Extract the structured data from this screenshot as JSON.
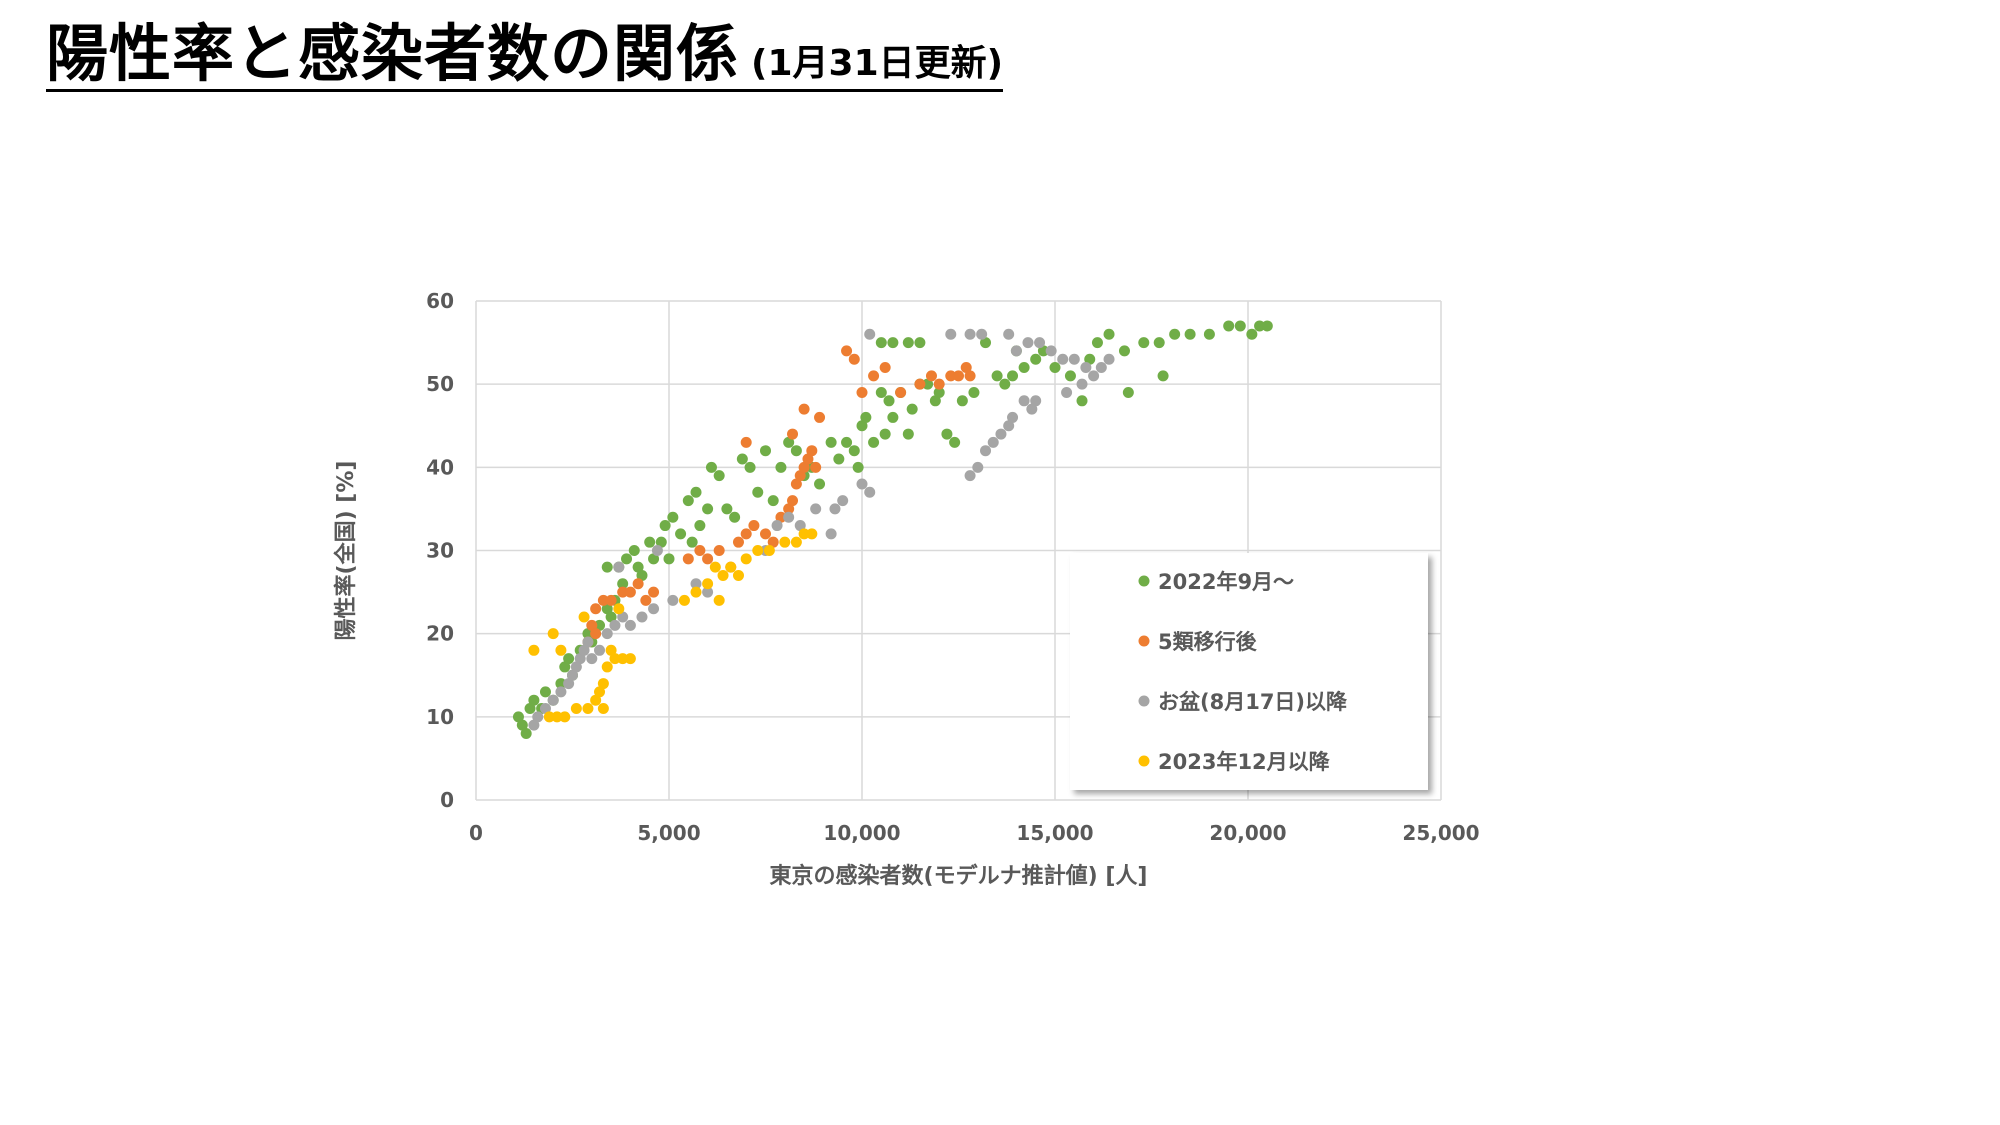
{
  "page": {
    "title": "陽性率と感染者数の関係",
    "subtitle": "(1月31日更新)"
  },
  "chart_data": {
    "type": "scatter",
    "xlabel": "東京の感染者数(モデルナ推計値) [人]",
    "ylabel": "陽性率(全国) [%]",
    "xlim": [
      0,
      25000
    ],
    "ylim": [
      0,
      60
    ],
    "x_ticks": [
      "0",
      "5,000",
      "10,000",
      "15,000",
      "20,000",
      "25,000"
    ],
    "y_ticks": [
      "0",
      "10",
      "20",
      "30",
      "40",
      "50",
      "60"
    ],
    "grid": true,
    "legend_position": "inside-bottom-right",
    "series": [
      {
        "name": "2022年9月～",
        "color": "#70ad47",
        "points": [
          [
            1200,
            9
          ],
          [
            1300,
            8
          ],
          [
            1100,
            10
          ],
          [
            1400,
            11
          ],
          [
            1500,
            12
          ],
          [
            1800,
            13
          ],
          [
            1700,
            11
          ],
          [
            2000,
            12
          ],
          [
            2200,
            14
          ],
          [
            2300,
            16
          ],
          [
            2500,
            15
          ],
          [
            2400,
            17
          ],
          [
            2700,
            18
          ],
          [
            2900,
            20
          ],
          [
            3000,
            19
          ],
          [
            3200,
            21
          ],
          [
            3400,
            23
          ],
          [
            3500,
            22
          ],
          [
            3600,
            24
          ],
          [
            3800,
            26
          ],
          [
            3700,
            28
          ],
          [
            3400,
            28
          ],
          [
            3900,
            29
          ],
          [
            4100,
            30
          ],
          [
            4200,
            28
          ],
          [
            4300,
            27
          ],
          [
            4500,
            31
          ],
          [
            4600,
            29
          ],
          [
            4800,
            31
          ],
          [
            5000,
            29
          ],
          [
            4900,
            33
          ],
          [
            5100,
            34
          ],
          [
            5300,
            32
          ],
          [
            5500,
            36
          ],
          [
            5700,
            37
          ],
          [
            5600,
            31
          ],
          [
            5800,
            33
          ],
          [
            6000,
            35
          ],
          [
            6100,
            40
          ],
          [
            6300,
            39
          ],
          [
            6500,
            35
          ],
          [
            6700,
            34
          ],
          [
            6900,
            41
          ],
          [
            7100,
            40
          ],
          [
            7300,
            37
          ],
          [
            7500,
            42
          ],
          [
            7700,
            36
          ],
          [
            7900,
            40
          ],
          [
            8100,
            43
          ],
          [
            8300,
            42
          ],
          [
            8500,
            39
          ],
          [
            8700,
            40
          ],
          [
            8900,
            38
          ],
          [
            9200,
            43
          ],
          [
            9400,
            41
          ],
          [
            9600,
            43
          ],
          [
            9800,
            42
          ],
          [
            9900,
            40
          ],
          [
            10000,
            45
          ],
          [
            10100,
            46
          ],
          [
            10300,
            43
          ],
          [
            10500,
            49
          ],
          [
            10600,
            44
          ],
          [
            10700,
            48
          ],
          [
            10800,
            46
          ],
          [
            11000,
            49
          ],
          [
            11200,
            44
          ],
          [
            11300,
            47
          ],
          [
            11500,
            50
          ],
          [
            11700,
            50
          ],
          [
            11900,
            48
          ],
          [
            12000,
            49
          ],
          [
            12200,
            44
          ],
          [
            12400,
            43
          ],
          [
            12600,
            48
          ],
          [
            12900,
            49
          ],
          [
            13200,
            55
          ],
          [
            13500,
            51
          ],
          [
            13700,
            50
          ],
          [
            13900,
            51
          ],
          [
            14000,
            54
          ],
          [
            14200,
            52
          ],
          [
            14500,
            53
          ],
          [
            14700,
            54
          ],
          [
            15000,
            52
          ],
          [
            15400,
            51
          ],
          [
            15700,
            48
          ],
          [
            15900,
            53
          ],
          [
            16100,
            55
          ],
          [
            16400,
            56
          ],
          [
            16800,
            54
          ],
          [
            16900,
            49
          ],
          [
            17300,
            55
          ],
          [
            17700,
            55
          ],
          [
            17800,
            51
          ],
          [
            18100,
            56
          ],
          [
            18500,
            56
          ],
          [
            19000,
            56
          ],
          [
            19500,
            57
          ],
          [
            19800,
            57
          ],
          [
            20100,
            56
          ],
          [
            20300,
            57
          ],
          [
            20500,
            57
          ],
          [
            10800,
            55
          ],
          [
            11200,
            55
          ],
          [
            11500,
            55
          ],
          [
            10500,
            55
          ]
        ]
      },
      {
        "name": "5類移行後",
        "color": "#ed7d31",
        "points": [
          [
            3100,
            23
          ],
          [
            3300,
            24
          ],
          [
            3500,
            24
          ],
          [
            3800,
            25
          ],
          [
            4000,
            25
          ],
          [
            4200,
            26
          ],
          [
            4400,
            24
          ],
          [
            4600,
            25
          ],
          [
            2900,
            19
          ],
          [
            3000,
            21
          ],
          [
            3100,
            20
          ],
          [
            5500,
            29
          ],
          [
            5800,
            30
          ],
          [
            6000,
            29
          ],
          [
            6300,
            30
          ],
          [
            6600,
            28
          ],
          [
            6800,
            31
          ],
          [
            7000,
            32
          ],
          [
            7200,
            33
          ],
          [
            7500,
            32
          ],
          [
            7700,
            31
          ],
          [
            7900,
            34
          ],
          [
            8100,
            35
          ],
          [
            8200,
            36
          ],
          [
            8300,
            38
          ],
          [
            8400,
            39
          ],
          [
            8500,
            40
          ],
          [
            8600,
            41
          ],
          [
            8700,
            42
          ],
          [
            8800,
            40
          ],
          [
            8500,
            47
          ],
          [
            8900,
            46
          ],
          [
            8200,
            44
          ],
          [
            7000,
            43
          ],
          [
            9600,
            54
          ],
          [
            9800,
            53
          ],
          [
            10000,
            49
          ],
          [
            10300,
            51
          ],
          [
            10600,
            52
          ],
          [
            11000,
            49
          ],
          [
            11500,
            50
          ],
          [
            11800,
            51
          ],
          [
            12000,
            50
          ],
          [
            12300,
            51
          ],
          [
            12500,
            51
          ],
          [
            12700,
            52
          ],
          [
            12800,
            51
          ]
        ]
      },
      {
        "name": "お盆(8月17日)以降",
        "color": "#a5a5a5",
        "points": [
          [
            1500,
            9
          ],
          [
            1600,
            10
          ],
          [
            1800,
            11
          ],
          [
            2000,
            12
          ],
          [
            2200,
            13
          ],
          [
            2400,
            14
          ],
          [
            2500,
            15
          ],
          [
            2600,
            16
          ],
          [
            2700,
            17
          ],
          [
            2800,
            18
          ],
          [
            2900,
            19
          ],
          [
            3000,
            17
          ],
          [
            3200,
            18
          ],
          [
            3400,
            20
          ],
          [
            3600,
            21
          ],
          [
            3800,
            22
          ],
          [
            4000,
            21
          ],
          [
            4300,
            22
          ],
          [
            4600,
            23
          ],
          [
            3700,
            28
          ],
          [
            4700,
            30
          ],
          [
            5100,
            24
          ],
          [
            5700,
            26
          ],
          [
            6000,
            25
          ],
          [
            7500,
            30
          ],
          [
            7800,
            33
          ],
          [
            8100,
            34
          ],
          [
            8400,
            33
          ],
          [
            8800,
            35
          ],
          [
            9300,
            35
          ],
          [
            9500,
            36
          ],
          [
            9200,
            32
          ],
          [
            10000,
            38
          ],
          [
            10200,
            37
          ],
          [
            10200,
            56
          ],
          [
            12300,
            56
          ],
          [
            12800,
            56
          ],
          [
            13100,
            56
          ],
          [
            13800,
            56
          ],
          [
            12800,
            39
          ],
          [
            13000,
            40
          ],
          [
            13200,
            42
          ],
          [
            13400,
            43
          ],
          [
            13600,
            44
          ],
          [
            13800,
            45
          ],
          [
            13900,
            46
          ],
          [
            14200,
            48
          ],
          [
            14400,
            47
          ],
          [
            14500,
            48
          ],
          [
            14000,
            54
          ],
          [
            14300,
            55
          ],
          [
            14600,
            55
          ],
          [
            14900,
            54
          ],
          [
            15200,
            53
          ],
          [
            15500,
            53
          ],
          [
            15800,
            52
          ],
          [
            16000,
            51
          ],
          [
            16200,
            52
          ],
          [
            16400,
            53
          ],
          [
            15300,
            49
          ],
          [
            15700,
            50
          ]
        ]
      },
      {
        "name": "2023年12月以降",
        "color": "#ffc000",
        "points": [
          [
            1500,
            18
          ],
          [
            2000,
            20
          ],
          [
            2200,
            18
          ],
          [
            2300,
            10
          ],
          [
            2600,
            11
          ],
          [
            2900,
            11
          ],
          [
            3100,
            12
          ],
          [
            3200,
            13
          ],
          [
            3400,
            16
          ],
          [
            3600,
            17
          ],
          [
            3800,
            17
          ],
          [
            4000,
            17
          ],
          [
            3500,
            18
          ],
          [
            2800,
            22
          ],
          [
            3700,
            23
          ],
          [
            1900,
            10
          ],
          [
            2100,
            10
          ],
          [
            3300,
            14
          ],
          [
            3300,
            11
          ],
          [
            5400,
            24
          ],
          [
            5700,
            25
          ],
          [
            6000,
            26
          ],
          [
            6200,
            28
          ],
          [
            6400,
            27
          ],
          [
            6600,
            28
          ],
          [
            6800,
            27
          ],
          [
            7000,
            29
          ],
          [
            7300,
            30
          ],
          [
            7600,
            30
          ],
          [
            8000,
            31
          ],
          [
            8300,
            31
          ],
          [
            8500,
            32
          ],
          [
            8700,
            32
          ],
          [
            6300,
            24
          ]
        ]
      }
    ]
  }
}
